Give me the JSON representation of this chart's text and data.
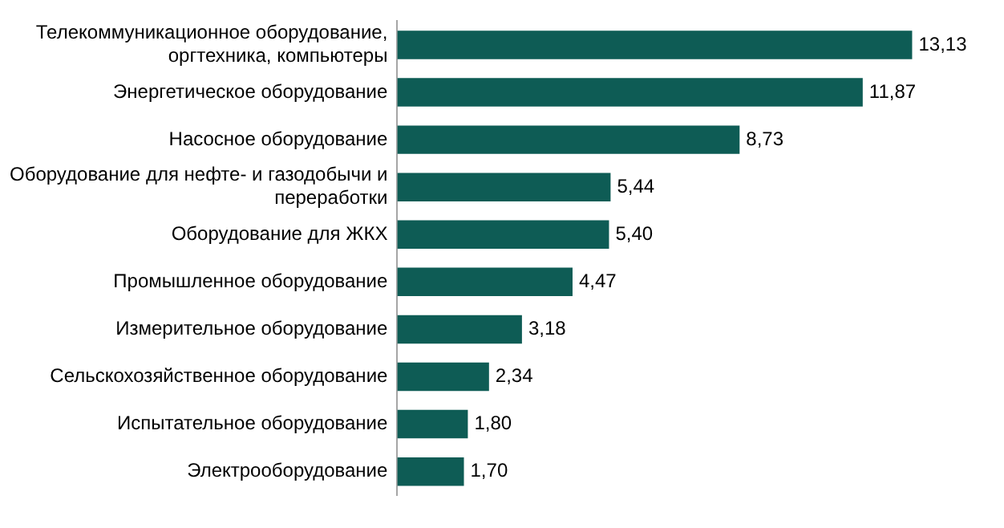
{
  "chart_data": {
    "type": "bar",
    "orientation": "horizontal",
    "categories": [
      "Телекоммуникационное оборудование, оргтехника, компьютеры",
      "Энергетическое оборудование",
      "Насосное оборудование",
      "Оборудование для нефте- и газодобычи и переработки",
      "Оборудование для ЖКХ",
      "Промышленное оборудование",
      "Измерительное оборудование",
      "Сельскохозяйственное оборудование",
      "Испытательное оборудование",
      "Электрооборудование"
    ],
    "values": [
      13.13,
      11.87,
      8.73,
      5.44,
      5.4,
      4.47,
      3.18,
      2.34,
      1.8,
      1.7
    ],
    "value_labels": [
      "13,13",
      "11,87",
      "8,73",
      "5,44",
      "5,40",
      "4,47",
      "3,18",
      "2,34",
      "1,80",
      "1,70"
    ],
    "color": "#0e5c55",
    "legend": false
  }
}
